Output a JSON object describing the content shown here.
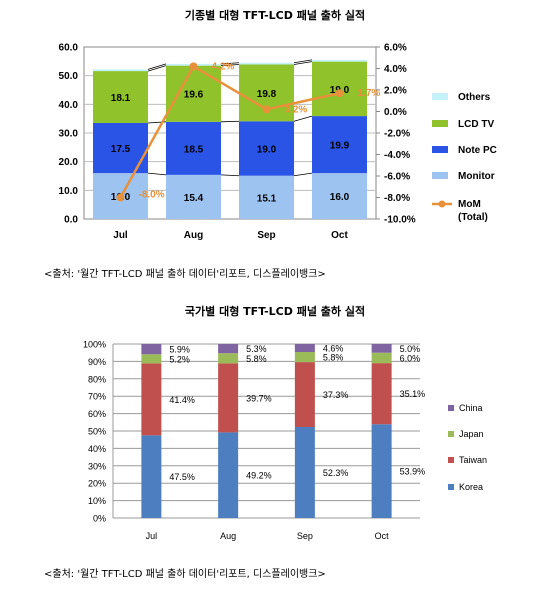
{
  "chart_data": [
    {
      "type": "bar",
      "stacked": true,
      "title": "기종별 대형 TFT-LCD 패널 출하 실적",
      "categories": [
        "Jul",
        "Aug",
        "Sep",
        "Oct"
      ],
      "ylim": [
        0,
        60
      ],
      "yticks": [
        "0.0",
        "10.0",
        "20.0",
        "30.0",
        "40.0",
        "50.0",
        "60.0"
      ],
      "y2lim": [
        -10,
        6
      ],
      "y2ticks": [
        "6.0%",
        "4.0%",
        "2.0%",
        "0.0%",
        "-2.0%",
        "-4.0%",
        "-6.0%",
        "-8.0%",
        "-10.0%"
      ],
      "grid": true,
      "legend_position": "right",
      "series": [
        {
          "name": "Monitor",
          "color": "#9dc3f0",
          "values": [
            16.0,
            15.4,
            15.1,
            16.0
          ],
          "labels": [
            "16.0",
            "15.4",
            "15.1",
            "16.0"
          ]
        },
        {
          "name": "Note PC",
          "color": "#2a54e6",
          "values": [
            17.5,
            18.5,
            19.0,
            19.9
          ],
          "labels": [
            "17.5",
            "18.5",
            "19.0",
            "19.9"
          ]
        },
        {
          "name": "LCD TV",
          "color": "#8fc22b",
          "values": [
            18.1,
            19.6,
            19.8,
            19.0
          ],
          "labels": [
            "18.1",
            "19.6",
            "19.8",
            "19.0"
          ]
        },
        {
          "name": "Others",
          "color": "#c5f2f8",
          "values": [
            0.6,
            0.6,
            0.6,
            0.6
          ]
        }
      ],
      "line_series": {
        "name": "MoM\n(Total)",
        "color": "#e8913a",
        "axis": "secondary",
        "values": [
          -8.0,
          4.2,
          0.2,
          1.7
        ],
        "labels": [
          "-8.0%",
          "4.2%",
          "0.2%",
          "1.7%"
        ]
      },
      "source": "<출처: '월간 TFT-LCD 패널 출하 데이터'리포트, 디스플레이뱅크>"
    },
    {
      "type": "bar",
      "stacked": true,
      "percent": true,
      "title": "국가별 대형 TFT-LCD 패널 출하 실적",
      "categories": [
        "Jul",
        "Aug",
        "Sep",
        "Oct"
      ],
      "ylim": [
        0,
        100
      ],
      "yticks": [
        "0%",
        "10%",
        "20%",
        "30%",
        "40%",
        "50%",
        "60%",
        "70%",
        "80%",
        "90%",
        "100%"
      ],
      "grid": true,
      "legend_position": "right",
      "series": [
        {
          "name": "Korea",
          "color": "#4d7ebf",
          "values": [
            47.5,
            49.2,
            52.3,
            53.9
          ],
          "labels": [
            "47.5%",
            "49.2%",
            "52.3%",
            "53.9%"
          ]
        },
        {
          "name": "Taiwan",
          "color": "#c0504d",
          "values": [
            41.4,
            39.7,
            37.3,
            35.1
          ],
          "labels": [
            "41.4%",
            "39.7%",
            "37.3%",
            "35.1%"
          ]
        },
        {
          "name": "Japan",
          "color": "#9bbb59",
          "values": [
            5.2,
            5.8,
            5.8,
            6.0
          ],
          "labels": [
            "5.2%",
            "5.8%",
            "5.8%",
            "6.0%"
          ]
        },
        {
          "name": "China",
          "color": "#8064a2",
          "values": [
            5.9,
            5.3,
            4.6,
            5.0
          ],
          "labels": [
            "5.9%",
            "5.3%",
            "4.6%",
            "5.0%"
          ]
        }
      ],
      "source": "<출처: '월간 TFT-LCD 패널 출하 데이터'리포트, 디스플레이뱅크>"
    }
  ]
}
